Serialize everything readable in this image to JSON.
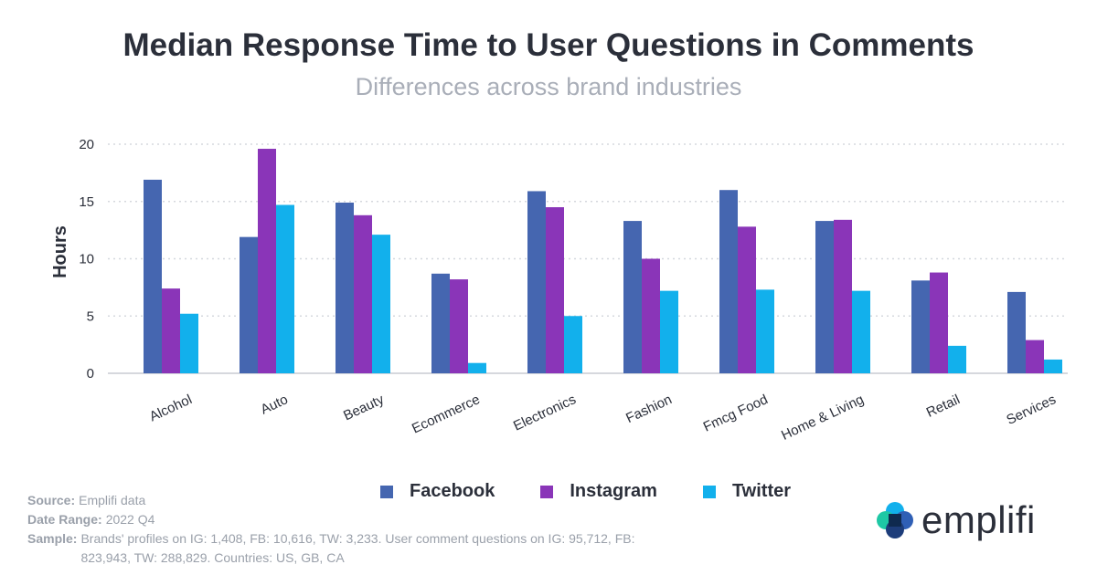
{
  "header": {
    "title": "Median Response Time to User Questions in Comments",
    "subtitle": "Differences across brand industries"
  },
  "chart_data": {
    "type": "bar",
    "title": "Median Response Time to User Questions in Comments",
    "subtitle": "Differences across brand industries",
    "xlabel": "",
    "ylabel": "Hours",
    "ylim": [
      0,
      20
    ],
    "yticks": [
      0,
      5,
      10,
      15,
      20
    ],
    "grid": true,
    "legend_position": "bottom",
    "categories": [
      "Alcohol",
      "Auto",
      "Beauty",
      "Ecommerce",
      "Electronics",
      "Fashion",
      "Fmcg Food",
      "Home & Living",
      "Retail",
      "Services"
    ],
    "series": [
      {
        "name": "Facebook",
        "color": "#4566b0",
        "values": [
          16.9,
          11.9,
          14.9,
          8.7,
          15.9,
          13.3,
          16.0,
          13.3,
          8.1,
          7.1
        ]
      },
      {
        "name": "Instagram",
        "color": "#8a35b8",
        "values": [
          7.4,
          19.6,
          13.8,
          8.2,
          14.5,
          10.0,
          12.8,
          13.4,
          8.8,
          2.9
        ]
      },
      {
        "name": "Twitter",
        "color": "#12b0ec",
        "values": [
          5.2,
          14.7,
          12.1,
          0.9,
          5.0,
          7.2,
          7.3,
          7.2,
          2.4,
          1.2
        ]
      }
    ]
  },
  "meta": {
    "source_label": "Source:",
    "source_value": "Emplifi data",
    "date_label": "Date Range:",
    "date_value": "2022 Q4",
    "sample_label": "Sample:",
    "sample_value": "Brands' profiles on IG: 1,408, FB: 10,616, TW: 3,233. User comment questions on IG: 95,712, FB: 823,943, TW: 288,829. Countries: US, GB, CA"
  },
  "logo": {
    "text": "emplifi"
  }
}
